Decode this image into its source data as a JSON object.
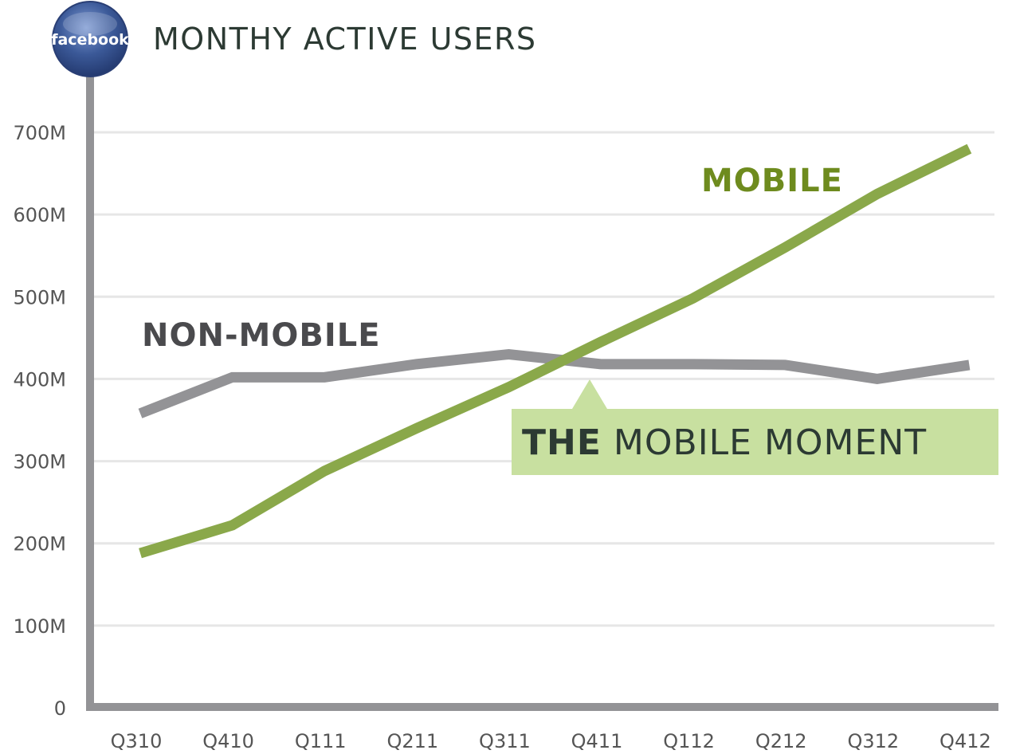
{
  "chart_data": {
    "type": "line",
    "title": "MONTHY ACTIVE USERS",
    "logo_text": "facebook",
    "categories": [
      "Q310",
      "Q410",
      "Q111",
      "Q211",
      "Q311",
      "Q411",
      "Q112",
      "Q212",
      "Q312",
      "Q412"
    ],
    "y_ticks": [
      {
        "value": 0,
        "label": "0"
      },
      {
        "value": 100,
        "label": "100M"
      },
      {
        "value": 200,
        "label": "200M"
      },
      {
        "value": 300,
        "label": "300M"
      },
      {
        "value": 400,
        "label": "400M"
      },
      {
        "value": 500,
        "label": "500M"
      },
      {
        "value": 600,
        "label": "600M"
      },
      {
        "value": 700,
        "label": "700M"
      }
    ],
    "ylim": [
      0,
      700
    ],
    "grid": true,
    "series": [
      {
        "name": "NON-MOBILE",
        "color": "#939396",
        "values": [
          358,
          402,
          402,
          418,
          430,
          418,
          418,
          417,
          400,
          417
        ]
      },
      {
        "name": "MOBILE",
        "color": "#8aa84a",
        "values": [
          188,
          222,
          288,
          340,
          390,
          445,
          498,
          560,
          625,
          680
        ]
      }
    ],
    "annotation": {
      "bold": "THE",
      "text": "MOBILE MOMENT",
      "category": "Q411",
      "background": "#c8e0a0"
    },
    "colors": {
      "axis": "#939396",
      "grid": "#e6e6e6",
      "text": "#2c3a33",
      "mobile_label": "#6e8b1e",
      "tick_text": "#555555"
    }
  }
}
